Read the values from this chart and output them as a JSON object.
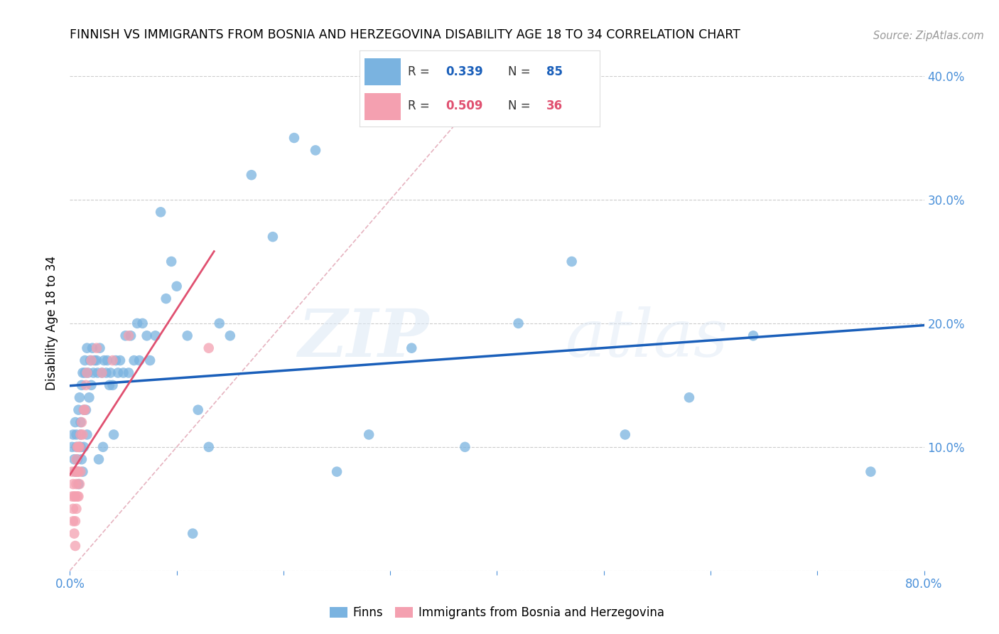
{
  "title": "FINNISH VS IMMIGRANTS FROM BOSNIA AND HERZEGOVINA DISABILITY AGE 18 TO 34 CORRELATION CHART",
  "source_text": "Source: ZipAtlas.com",
  "ylabel": "Disability Age 18 to 34",
  "xlim": [
    0.0,
    0.8
  ],
  "ylim": [
    0.0,
    0.4
  ],
  "xticks": [
    0.0,
    0.1,
    0.2,
    0.3,
    0.4,
    0.5,
    0.6,
    0.7,
    0.8
  ],
  "xticklabels": [
    "0.0%",
    "",
    "",
    "",
    "",
    "",
    "",
    "",
    "80.0%"
  ],
  "yticks": [
    0.0,
    0.1,
    0.2,
    0.3,
    0.4
  ],
  "yticklabels_right": [
    "",
    "10.0%",
    "20.0%",
    "30.0%",
    "40.0%"
  ],
  "finns_color": "#7ab3e0",
  "immigrants_color": "#f4a0b0",
  "finn_line_color": "#1a5fba",
  "immigrant_line_color": "#e05070",
  "diagonal_color": "#e0a0b0",
  "R_finns": 0.339,
  "N_finns": 85,
  "R_immigrants": 0.509,
  "N_immigrants": 36,
  "legend_label_finns": "Finns",
  "legend_label_immigrants": "Immigrants from Bosnia and Herzegovina",
  "watermark_zip": "ZIP",
  "watermark_atlas": "atlas",
  "finns_x": [
    0.002,
    0.003,
    0.004,
    0.005,
    0.005,
    0.006,
    0.006,
    0.007,
    0.007,
    0.008,
    0.008,
    0.009,
    0.009,
    0.01,
    0.01,
    0.01,
    0.011,
    0.011,
    0.012,
    0.012,
    0.013,
    0.013,
    0.014,
    0.014,
    0.015,
    0.016,
    0.016,
    0.017,
    0.018,
    0.019,
    0.02,
    0.021,
    0.022,
    0.023,
    0.025,
    0.026,
    0.027,
    0.028,
    0.03,
    0.031,
    0.032,
    0.034,
    0.035,
    0.037,
    0.038,
    0.04,
    0.041,
    0.043,
    0.045,
    0.047,
    0.05,
    0.052,
    0.055,
    0.057,
    0.06,
    0.063,
    0.065,
    0.068,
    0.072,
    0.075,
    0.08,
    0.085,
    0.09,
    0.095,
    0.1,
    0.11,
    0.115,
    0.12,
    0.13,
    0.14,
    0.15,
    0.17,
    0.19,
    0.21,
    0.23,
    0.25,
    0.28,
    0.32,
    0.37,
    0.42,
    0.47,
    0.52,
    0.58,
    0.64,
    0.75
  ],
  "finns_y": [
    0.1,
    0.11,
    0.09,
    0.08,
    0.12,
    0.11,
    0.1,
    0.09,
    0.08,
    0.07,
    0.13,
    0.1,
    0.14,
    0.12,
    0.11,
    0.1,
    0.09,
    0.15,
    0.08,
    0.16,
    0.13,
    0.1,
    0.17,
    0.16,
    0.13,
    0.11,
    0.18,
    0.16,
    0.14,
    0.17,
    0.15,
    0.18,
    0.16,
    0.17,
    0.17,
    0.16,
    0.09,
    0.18,
    0.16,
    0.1,
    0.17,
    0.16,
    0.17,
    0.15,
    0.16,
    0.15,
    0.11,
    0.17,
    0.16,
    0.17,
    0.16,
    0.19,
    0.16,
    0.19,
    0.17,
    0.2,
    0.17,
    0.2,
    0.19,
    0.17,
    0.19,
    0.29,
    0.22,
    0.25,
    0.23,
    0.19,
    0.03,
    0.13,
    0.1,
    0.2,
    0.19,
    0.32,
    0.27,
    0.35,
    0.34,
    0.08,
    0.11,
    0.18,
    0.1,
    0.2,
    0.25,
    0.11,
    0.14,
    0.19,
    0.08
  ],
  "immigrants_x": [
    0.002,
    0.002,
    0.003,
    0.003,
    0.003,
    0.004,
    0.004,
    0.005,
    0.005,
    0.005,
    0.005,
    0.006,
    0.006,
    0.006,
    0.007,
    0.007,
    0.007,
    0.008,
    0.008,
    0.008,
    0.009,
    0.009,
    0.01,
    0.01,
    0.011,
    0.012,
    0.013,
    0.014,
    0.015,
    0.016,
    0.02,
    0.025,
    0.03,
    0.04,
    0.055,
    0.13
  ],
  "immigrants_y": [
    0.08,
    0.06,
    0.07,
    0.05,
    0.04,
    0.06,
    0.03,
    0.08,
    0.06,
    0.04,
    0.02,
    0.09,
    0.07,
    0.05,
    0.1,
    0.08,
    0.06,
    0.1,
    0.08,
    0.06,
    0.1,
    0.07,
    0.11,
    0.08,
    0.12,
    0.11,
    0.13,
    0.13,
    0.15,
    0.16,
    0.17,
    0.18,
    0.16,
    0.17,
    0.19,
    0.18
  ]
}
